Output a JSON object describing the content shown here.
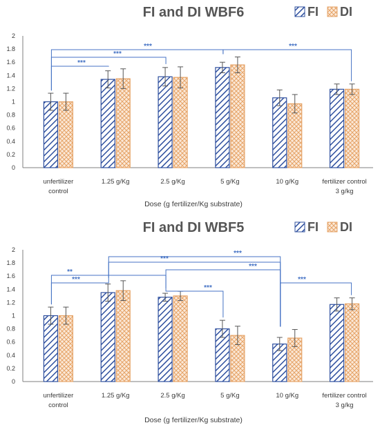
{
  "colors": {
    "fi": "#2e4f9e",
    "di": "#e6a468",
    "bracket": "#4472c4",
    "axis": "#7f7f7f",
    "text": "#3a3a3a",
    "title": "#555555"
  },
  "chart_data": [
    {
      "type": "bar",
      "title": "FI and DI WBF6",
      "xlabel": "Dose (g fertilizer/Kg substrate)",
      "ylabel": "",
      "ylim": [
        0,
        2
      ],
      "yticks": [
        "0",
        "0.2",
        "0.4",
        "0.6",
        "0.8",
        "1",
        "1.2",
        "1.4",
        "1.6",
        "1.8",
        "2"
      ],
      "categories": [
        [
          "unfertilizer",
          "control"
        ],
        [
          "1.25 g/Kg"
        ],
        [
          "2.5 g/Kg"
        ],
        [
          "5 g/Kg"
        ],
        [
          "10 g/Kg"
        ],
        [
          "fertilizer control",
          "3 g/kg"
        ]
      ],
      "series": [
        {
          "name": "FI",
          "values": [
            1.0,
            1.34,
            1.38,
            1.52,
            1.06,
            1.19
          ],
          "errors": [
            0.13,
            0.13,
            0.14,
            0.08,
            0.12,
            0.08
          ]
        },
        {
          "name": "DI",
          "values": [
            1.0,
            1.35,
            1.37,
            1.56,
            0.97,
            1.19
          ],
          "errors": [
            0.13,
            0.15,
            0.16,
            0.12,
            0.14,
            0.08
          ]
        }
      ],
      "legend": "top-right",
      "significance": [
        {
          "from": 0,
          "to": 1,
          "label": "***"
        },
        {
          "from": 0,
          "to": 2,
          "label": "***"
        },
        {
          "from": 0,
          "to": 3,
          "label": "***"
        },
        {
          "from": 3,
          "to": 5,
          "label": "***"
        }
      ]
    },
    {
      "type": "bar",
      "title": "FI and DI WBF5",
      "xlabel": "Dose (g fertilizer/Kg substrate)",
      "ylabel": "",
      "ylim": [
        0,
        2
      ],
      "yticks": [
        "0",
        "0.2",
        "0.4",
        "0.6",
        "0.8",
        "1",
        "1.2",
        "1.4",
        "1.6",
        "1.8",
        "2"
      ],
      "categories": [
        [
          "unfertilizer",
          "control"
        ],
        [
          "1.25 g/Kg"
        ],
        [
          "2.5 g/Kg"
        ],
        [
          "5 g/Kg"
        ],
        [
          "10 g/Kg"
        ],
        [
          "fertilizer control",
          "3 g/kg"
        ]
      ],
      "series": [
        {
          "name": "FI",
          "values": [
            1.0,
            1.35,
            1.28,
            0.8,
            0.57,
            1.17
          ],
          "errors": [
            0.13,
            0.13,
            0.06,
            0.13,
            0.1,
            0.1
          ]
        },
        {
          "name": "DI",
          "values": [
            1.0,
            1.38,
            1.3,
            0.7,
            0.66,
            1.18
          ],
          "errors": [
            0.13,
            0.15,
            0.07,
            0.14,
            0.13,
            0.09
          ]
        }
      ],
      "legend": "top-right",
      "significance": [
        {
          "from": 0,
          "to": 1,
          "label": "***"
        },
        {
          "from": 0,
          "to": 2,
          "label": "**"
        },
        {
          "from": 1,
          "to": 4,
          "label": "***"
        },
        {
          "from": 2,
          "to": 3,
          "label": "***"
        },
        {
          "from": 1,
          "to": 4,
          "label": "***"
        },
        {
          "from": 2,
          "to": 4,
          "label": "***"
        },
        {
          "from": 4,
          "to": 5,
          "label": "***"
        }
      ]
    }
  ]
}
